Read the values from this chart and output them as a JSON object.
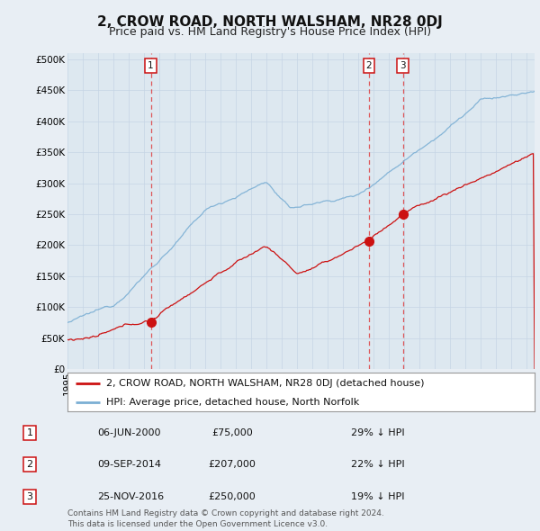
{
  "title": "2, CROW ROAD, NORTH WALSHAM, NR28 0DJ",
  "subtitle": "Price paid vs. HM Land Registry's House Price Index (HPI)",
  "ylabel_ticks": [
    "£0",
    "£50K",
    "£100K",
    "£150K",
    "£200K",
    "£250K",
    "£300K",
    "£350K",
    "£400K",
    "£450K",
    "£500K"
  ],
  "ytick_values": [
    0,
    50000,
    100000,
    150000,
    200000,
    250000,
    300000,
    350000,
    400000,
    450000,
    500000
  ],
  "ylim": [
    0,
    510000
  ],
  "xlim_start": 1995.0,
  "xlim_end": 2025.5,
  "hpi_color": "#7bafd4",
  "price_color": "#cc1111",
  "sale_dot_color": "#cc1111",
  "bg_color": "#e8eef4",
  "plot_bg_color": "#dde8f0",
  "grid_color": "#c5d5e5",
  "legend_label_red": "2, CROW ROAD, NORTH WALSHAM, NR28 0DJ (detached house)",
  "legend_label_blue": "HPI: Average price, detached house, North Norfolk",
  "transactions": [
    {
      "num": 1,
      "date": "06-JUN-2000",
      "year": 2000.44,
      "price": 75000,
      "pct": "29%",
      "direction": "↓"
    },
    {
      "num": 2,
      "date": "09-SEP-2014",
      "year": 2014.69,
      "price": 207000,
      "pct": "22%",
      "direction": "↓"
    },
    {
      "num": 3,
      "date": "25-NOV-2016",
      "year": 2016.9,
      "price": 250000,
      "pct": "19%",
      "direction": "↓"
    }
  ],
  "footer": "Contains HM Land Registry data © Crown copyright and database right 2024.\nThis data is licensed under the Open Government Licence v3.0.",
  "title_fontsize": 11,
  "subtitle_fontsize": 9,
  "tick_fontsize": 7.5,
  "legend_fontsize": 8,
  "footer_fontsize": 6.5
}
